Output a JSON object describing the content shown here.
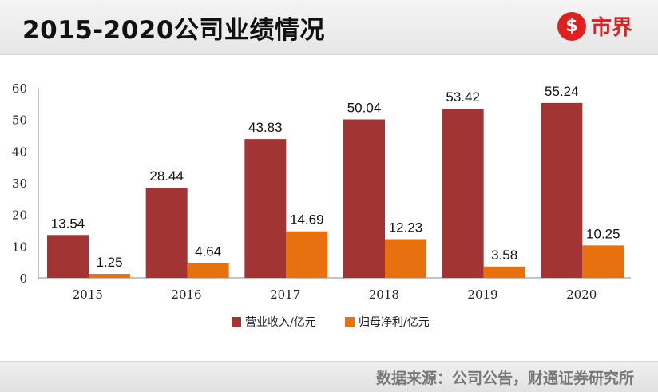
{
  "header": {
    "title": "2015-2020公司业绩情况",
    "logo_mark": "$",
    "logo_text": "市界"
  },
  "footer": {
    "source": "数据来源：公司公告，财通证券研究所"
  },
  "colors": {
    "series1": "#a23434",
    "series2": "#e8710f",
    "brand": "#e02020"
  },
  "chart_data": {
    "type": "bar",
    "categories": [
      "2015",
      "2016",
      "2017",
      "2018",
      "2019",
      "2020"
    ],
    "series": [
      {
        "name": "营业收入/亿元",
        "values": [
          13.54,
          28.44,
          43.83,
          50.04,
          53.42,
          55.24
        ]
      },
      {
        "name": "归母净利/亿元",
        "values": [
          1.25,
          4.64,
          14.69,
          12.23,
          3.58,
          10.25
        ]
      }
    ],
    "ylim": [
      0,
      60
    ],
    "yticks": [
      0,
      10,
      20,
      30,
      40,
      50,
      60
    ],
    "grid": false,
    "legend": "bottom",
    "data_labels": true
  }
}
